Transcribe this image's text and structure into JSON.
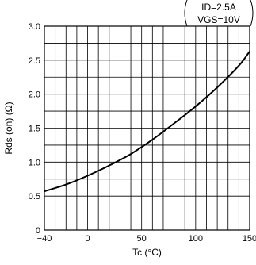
{
  "chart_data": {
    "type": "line",
    "title": "",
    "xlabel": "Tc (°C)",
    "ylabel": "Rds (on) (Ω)",
    "xlim": [
      -40,
      150
    ],
    "ylim": [
      0,
      3.0
    ],
    "x_ticks": [
      -40,
      0,
      50,
      100,
      150
    ],
    "x_tick_labels": [
      "−40",
      "0",
      "50",
      "100",
      "150"
    ],
    "y_ticks": [
      0,
      0.5,
      1.0,
      1.5,
      2.0,
      2.5,
      3.0
    ],
    "y_tick_labels": [
      "0",
      "0.5",
      "1.0",
      "1.5",
      "2.0",
      "2.5",
      "3.0"
    ],
    "x_grid_step": 10,
    "y_grid_step": 0.25,
    "grid": true,
    "conditions": [
      "ID=2.5A",
      "VGS=10V"
    ],
    "series": [
      {
        "x": [
          -40,
          -20,
          0,
          20,
          40,
          60,
          80,
          100,
          120,
          140,
          150
        ],
        "y": [
          0.57,
          0.67,
          0.8,
          0.95,
          1.12,
          1.33,
          1.57,
          1.82,
          2.1,
          2.42,
          2.63
        ]
      }
    ]
  }
}
